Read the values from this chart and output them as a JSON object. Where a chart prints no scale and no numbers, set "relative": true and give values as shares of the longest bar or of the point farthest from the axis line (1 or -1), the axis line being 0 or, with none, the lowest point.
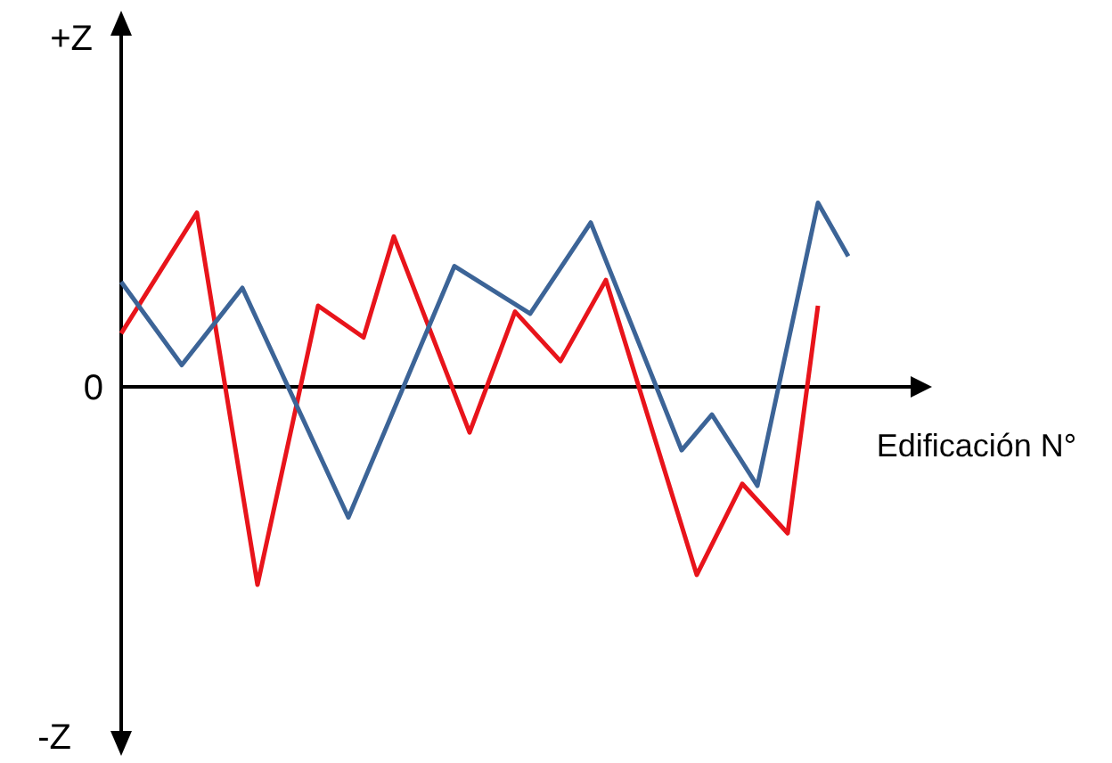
{
  "chart_data": {
    "type": "line",
    "relative": true,
    "xlabel": "Edificación N°",
    "categories": [
      null,
      null,
      null,
      null,
      null,
      null,
      null,
      null,
      null,
      null,
      null,
      null,
      null,
      null,
      null,
      null,
      null,
      null,
      null,
      null,
      null,
      null,
      null,
      null,
      null,
      null,
      null,
      null,
      null,
      null,
      null,
      null,
      null,
      null,
      null,
      null,
      null,
      null,
      null,
      null,
      null,
      null,
      null,
      null,
      null,
      null,
      null,
      null,
      null,
      null,
      null,
      null,
      null
    ],
    "annotations": [
      "+Z",
      "0",
      "-Z"
    ],
    "marker": "none",
    "line_style": "solid",
    "series": [
      {
        "color": "#e8141b",
        "values": [
          0.27,
          null,
          null,
          null,
          null,
          0.88,
          null,
          null,
          null,
          -1,
          null,
          null,
          null,
          0.41,
          null,
          null,
          0.25,
          null,
          0.76,
          null,
          null,
          null,
          null,
          -0.23,
          null,
          null,
          0.38,
          null,
          null,
          0.13,
          null,
          null,
          0.54,
          null,
          null,
          null,
          null,
          null,
          -0.95,
          null,
          null,
          -0.49,
          null,
          null,
          -0.74,
          null,
          0.41,
          null,
          null,
          null,
          null,
          null,
          null
        ]
      },
      {
        "color": "#3c6497",
        "values": [
          0.53,
          null,
          null,
          null,
          0.11,
          null,
          null,
          null,
          0.5,
          null,
          null,
          null,
          null,
          null,
          null,
          -0.66,
          null,
          null,
          null,
          null,
          null,
          null,
          0.61,
          null,
          null,
          null,
          null,
          0.37,
          null,
          null,
          null,
          0.83,
          null,
          null,
          null,
          null,
          null,
          -0.32,
          null,
          -0.14,
          null,
          null,
          -0.5,
          null,
          null,
          null,
          0.93,
          null,
          0.66,
          null,
          null,
          null,
          null
        ]
      }
    ]
  }
}
